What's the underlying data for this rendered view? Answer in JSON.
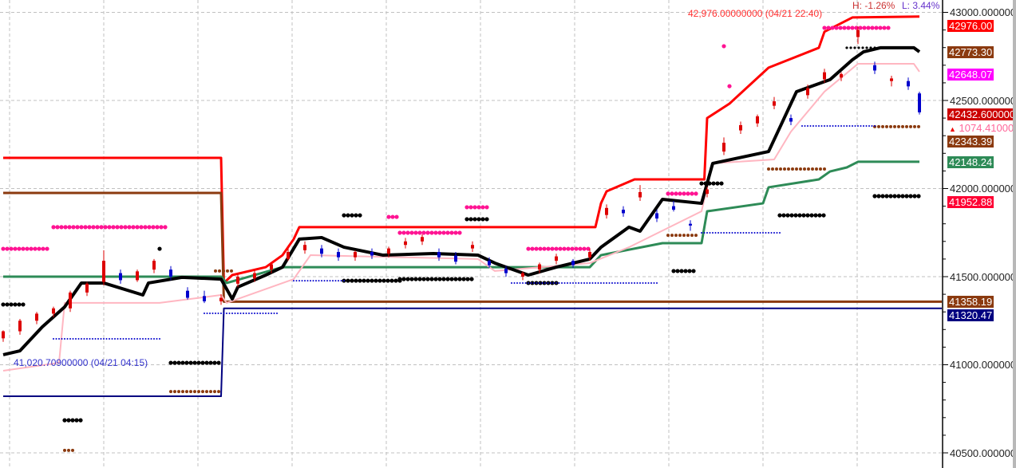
{
  "chart_data": {
    "type": "candlestick",
    "y_axis": {
      "range": [
        40450,
        43050
      ],
      "ticks": [
        43000,
        42500,
        42000,
        41500,
        41000,
        40500
      ],
      "tick_labels": [
        "43000.000000",
        "42500.000000",
        "42000.000000",
        "41500.000000",
        "41000.000000",
        "40500.000000"
      ],
      "grid": true
    },
    "x_axis": {
      "grid": true
    },
    "annotations": {
      "high_label": "42,976.00000000 (04/21 22:40)",
      "low_label": "41,020.70900000 (04/21 04:15)",
      "h_pct": "H: -1.26%",
      "l_pct": "L: 3.44%"
    },
    "price_tags": [
      {
        "text": "42976.00",
        "value": 42976.0,
        "color": "#ff0000"
      },
      {
        "text": "42773.30",
        "value": 42773.3,
        "color": "#8b3a0f"
      },
      {
        "text": "42648.07",
        "value": 42648.07,
        "color": "#ff00ff"
      },
      {
        "text": "42432.600000",
        "value": 42432.6,
        "color": "#cc0000"
      },
      {
        "text": "42343.39",
        "value": 42343.39,
        "color": "#8b3a0f"
      },
      {
        "text": "42148.24",
        "value": 42148.24,
        "color": "#2e8b57"
      },
      {
        "text": "41952.88",
        "value": 41952.88,
        "color": "#ff0033"
      },
      {
        "text": "41358.19",
        "value": 41358.19,
        "color": "#8b3a0f"
      },
      {
        "text": "41320.47",
        "value": 41320.47,
        "color": "#000080"
      }
    ],
    "change_tag": {
      "text": "1074.410000",
      "arrow": "▲",
      "color": "#ff6699"
    },
    "colors": {
      "up": "#dd0000",
      "down": "#0000cc"
    },
    "lines": [
      {
        "color": "#ff0000",
        "width": 3,
        "points": [
          [
            0,
            42174
          ],
          [
            39,
            42174
          ],
          [
            39.5,
            41464
          ],
          [
            41,
            41509
          ],
          [
            47,
            41554
          ],
          [
            50,
            41622
          ],
          [
            52,
            41713
          ],
          [
            53,
            41781
          ],
          [
            106,
            41781
          ],
          [
            107,
            41916
          ],
          [
            108,
            41984
          ],
          [
            113,
            42052
          ],
          [
            125.5,
            42052
          ],
          [
            126,
            42400
          ],
          [
            130,
            42482
          ],
          [
            137,
            42686
          ],
          [
            146,
            42799
          ],
          [
            147,
            42890
          ],
          [
            152,
            42971
          ],
          [
            164,
            42976
          ]
        ]
      },
      {
        "color": "#8b3a0f",
        "width": 3,
        "points": [
          [
            0,
            41975
          ],
          [
            39,
            41975
          ],
          [
            39.5,
            41358
          ],
          [
            168,
            41358
          ]
        ]
      },
      {
        "color": "#000080",
        "width": 2,
        "points": [
          [
            0,
            40821
          ],
          [
            39,
            40821
          ],
          [
            39.5,
            41320
          ],
          [
            168,
            41320
          ]
        ]
      },
      {
        "color": "#2e8b57",
        "width": 3,
        "points": [
          [
            0,
            41500
          ],
          [
            39,
            41500
          ],
          [
            40,
            41464
          ],
          [
            50,
            41554
          ],
          [
            105,
            41554
          ],
          [
            107,
            41622
          ],
          [
            118,
            41690
          ],
          [
            125,
            41690
          ],
          [
            126,
            41871
          ],
          [
            136,
            41916
          ],
          [
            137,
            42007
          ],
          [
            146,
            42052
          ],
          [
            148,
            42097
          ],
          [
            151,
            42120
          ],
          [
            153,
            42152
          ],
          [
            164,
            42152
          ]
        ]
      },
      {
        "color": "#ffb6c1",
        "width": 2,
        "points": [
          [
            0,
            40966
          ],
          [
            10,
            41011
          ],
          [
            11,
            41351
          ],
          [
            28,
            41351
          ],
          [
            39,
            41396
          ],
          [
            40,
            41351
          ],
          [
            52,
            41486
          ],
          [
            55,
            41622
          ],
          [
            85,
            41600
          ],
          [
            88,
            41532
          ],
          [
            105,
            41577
          ],
          [
            112,
            41667
          ],
          [
            125,
            41871
          ],
          [
            127,
            42143
          ],
          [
            138,
            42165
          ],
          [
            141,
            42323
          ],
          [
            147,
            42550
          ],
          [
            153,
            42708
          ],
          [
            163,
            42708
          ],
          [
            164,
            42663
          ]
        ]
      },
      {
        "color": "#000000",
        "width": 4,
        "points": [
          [
            0,
            41057
          ],
          [
            3,
            41079
          ],
          [
            7,
            41215
          ],
          [
            11,
            41328
          ],
          [
            14,
            41464
          ],
          [
            18,
            41464
          ],
          [
            25,
            41396
          ],
          [
            26,
            41464
          ],
          [
            32,
            41496
          ],
          [
            39,
            41486
          ],
          [
            41,
            41373
          ],
          [
            42,
            41441
          ],
          [
            47,
            41509
          ],
          [
            50,
            41554
          ],
          [
            53,
            41713
          ],
          [
            57,
            41722
          ],
          [
            61,
            41667
          ],
          [
            68,
            41622
          ],
          [
            77,
            41631
          ],
          [
            85,
            41622
          ],
          [
            88,
            41577
          ],
          [
            94,
            41509
          ],
          [
            99,
            41554
          ],
          [
            105,
            41600
          ],
          [
            107,
            41667
          ],
          [
            112,
            41781
          ],
          [
            114,
            41758
          ],
          [
            118,
            41939
          ],
          [
            125,
            41916
          ],
          [
            127,
            42143
          ],
          [
            137,
            42210
          ],
          [
            139,
            42346
          ],
          [
            142,
            42550
          ],
          [
            148,
            42618
          ],
          [
            152,
            42731
          ],
          [
            154,
            42776
          ],
          [
            157,
            42799
          ],
          [
            163,
            42799
          ],
          [
            164,
            42776
          ]
        ]
      }
    ],
    "dot_rows": [
      {
        "color": "#ff1493",
        "r": 2.6,
        "from": 0,
        "to": 8,
        "price": 41658
      },
      {
        "color": "#ff1493",
        "r": 2.6,
        "from": 9,
        "to": 29,
        "price": 41781
      },
      {
        "color": "#ff1493",
        "r": 2.6,
        "from": 69,
        "to": 71,
        "price": 41839
      },
      {
        "color": "#ff1493",
        "r": 2.6,
        "from": 83,
        "to": 87,
        "price": 41894
      },
      {
        "color": "#ff1493",
        "r": 2.6,
        "from": 71,
        "to": 82,
        "price": 41749
      },
      {
        "color": "#ff1493",
        "r": 2.6,
        "from": 94,
        "to": 105,
        "price": 41658
      },
      {
        "color": "#ff1493",
        "r": 2.6,
        "from": 119,
        "to": 124,
        "price": 41971
      },
      {
        "color": "#ff1493",
        "r": 2.6,
        "from": 147,
        "to": 159,
        "price": 42912
      },
      {
        "color": "#ff1493",
        "r": 2.6,
        "from": 129,
        "to": 129,
        "price": 42808
      },
      {
        "color": "#ff1493",
        "r": 2.6,
        "from": 130,
        "to": 130,
        "price": 42581
      },
      {
        "color": "#000000",
        "r": 2.6,
        "from": 61,
        "to": 64,
        "price": 41848
      },
      {
        "color": "#000000",
        "r": 2.6,
        "from": 83,
        "to": 87,
        "price": 41826
      },
      {
        "color": "#000000",
        "r": 2.6,
        "from": 61,
        "to": 71,
        "price": 41477
      },
      {
        "color": "#000000",
        "r": 2.6,
        "from": 94,
        "to": 99,
        "price": 41464
      },
      {
        "color": "#000000",
        "r": 2.6,
        "from": 30,
        "to": 39,
        "price": 41011
      },
      {
        "color": "#000000",
        "r": 2.6,
        "from": 71,
        "to": 84,
        "price": 41486
      },
      {
        "color": "#000000",
        "r": 2.6,
        "from": 139,
        "to": 147,
        "price": 41848
      },
      {
        "color": "#000000",
        "r": 2.6,
        "from": 156,
        "to": 164,
        "price": 41957
      },
      {
        "color": "#000000",
        "r": 2.6,
        "from": 125,
        "to": 129,
        "price": 42029
      },
      {
        "color": "#000000",
        "r": 2.6,
        "from": 120,
        "to": 124,
        "price": 41532
      },
      {
        "color": "#000000",
        "r": 2.6,
        "from": 0,
        "to": 4,
        "price": 41342
      },
      {
        "color": "#000000",
        "r": 2.6,
        "from": 11,
        "to": 14,
        "price": 40685
      },
      {
        "color": "#000000",
        "r": 2.6,
        "from": 28,
        "to": 28,
        "price": 41658
      },
      {
        "color": "#000000",
        "r": 1.6,
        "from": 151,
        "to": 157,
        "price": 42799
      },
      {
        "color": "#8b3a0f",
        "r": 2,
        "from": 30,
        "to": 39,
        "price": 40848
      },
      {
        "color": "#8b3a0f",
        "r": 2,
        "from": 11,
        "to": 13,
        "price": 40514
      },
      {
        "color": "#8b3a0f",
        "r": 2,
        "from": 156,
        "to": 164,
        "price": 42351
      },
      {
        "color": "#8b3a0f",
        "r": 2,
        "from": 119,
        "to": 124,
        "price": 41735
      },
      {
        "color": "#8b3a0f",
        "r": 2,
        "from": 137,
        "to": 147,
        "price": 42111
      },
      {
        "color": "#8b3a0f",
        "r": 2,
        "from": 38,
        "to": 41,
        "price": 41532
      },
      {
        "color": "#0000cc",
        "r": 1,
        "from": 9,
        "to": 28,
        "price": 41147
      },
      {
        "color": "#0000cc",
        "r": 1,
        "from": 36,
        "to": 49,
        "price": 41292
      },
      {
        "color": "#0000cc",
        "r": 1,
        "from": 91,
        "to": 117,
        "price": 41464
      },
      {
        "color": "#0000cc",
        "r": 1,
        "from": 125,
        "to": 139,
        "price": 41749
      },
      {
        "color": "#0000cc",
        "r": 1,
        "from": 143,
        "to": 156,
        "price": 42355
      },
      {
        "color": "#0000cc",
        "r": 1,
        "from": 52,
        "to": 61,
        "price": 41477
      }
    ],
    "candles": [
      [
        0,
        41150,
        41195,
        41130,
        41190
      ],
      [
        3,
        41190,
        41260,
        41170,
        41250
      ],
      [
        6,
        41250,
        41300,
        41230,
        41290
      ],
      [
        9,
        41290,
        41330,
        41270,
        41320
      ],
      [
        12,
        41320,
        41420,
        41300,
        41410
      ],
      [
        15,
        41410,
        41470,
        41390,
        41460
      ],
      [
        18,
        41470,
        41650,
        41450,
        41590
      ],
      [
        21,
        41520,
        41540,
        41460,
        41480
      ],
      [
        24,
        41480,
        41540,
        41470,
        41530
      ],
      [
        27,
        41540,
        41600,
        41520,
        41590
      ],
      [
        30,
        41540,
        41560,
        41480,
        41500
      ],
      [
        33,
        41420,
        41440,
        41370,
        41380
      ],
      [
        36,
        41390,
        41420,
        41350,
        41360
      ],
      [
        39,
        41360,
        41400,
        41340,
        41380
      ],
      [
        42,
        41460,
        41520,
        41440,
        41500
      ],
      [
        45,
        41490,
        41540,
        41470,
        41520
      ],
      [
        48,
        41540,
        41580,
        41520,
        41570
      ],
      [
        51,
        41600,
        41660,
        41590,
        41640
      ],
      [
        54,
        41650,
        41700,
        41630,
        41680
      ],
      [
        57,
        41660,
        41680,
        41610,
        41630
      ],
      [
        60,
        41640,
        41660,
        41590,
        41610
      ],
      [
        63,
        41610,
        41650,
        41590,
        41640
      ],
      [
        66,
        41640,
        41660,
        41600,
        41620
      ],
      [
        69,
        41630,
        41670,
        41610,
        41660
      ],
      [
        72,
        41680,
        41720,
        41660,
        41700
      ],
      [
        75,
        41700,
        41740,
        41680,
        41725
      ],
      [
        78,
        41640,
        41660,
        41590,
        41610
      ],
      [
        81,
        41620,
        41640,
        41570,
        41585
      ],
      [
        84,
        41660,
        41700,
        41640,
        41680
      ],
      [
        87,
        41590,
        41610,
        41550,
        41565
      ],
      [
        90,
        41545,
        41560,
        41500,
        41520
      ],
      [
        93,
        41500,
        41530,
        41480,
        41520
      ],
      [
        96,
        41540,
        41580,
        41520,
        41570
      ],
      [
        99,
        41590,
        41630,
        41570,
        41615
      ],
      [
        102,
        41590,
        41600,
        41550,
        41565
      ],
      [
        105,
        41610,
        41660,
        41590,
        41640
      ],
      [
        108,
        41850,
        41910,
        41830,
        41890
      ],
      [
        111,
        41880,
        41900,
        41840,
        41860
      ],
      [
        114,
        41950,
        42020,
        41930,
        41980
      ],
      [
        117,
        41860,
        41880,
        41810,
        41830
      ],
      [
        120,
        41900,
        41930,
        41870,
        41880
      ],
      [
        123,
        41800,
        41820,
        41760,
        41790
      ],
      [
        126,
        41970,
        42010,
        41950,
        41995
      ],
      [
        129,
        42210,
        42290,
        42190,
        42260
      ],
      [
        132,
        42330,
        42380,
        42310,
        42360
      ],
      [
        135,
        42370,
        42420,
        42350,
        42410
      ],
      [
        138,
        42470,
        42520,
        42450,
        42495
      ],
      [
        141,
        42400,
        42420,
        42360,
        42380
      ],
      [
        144,
        42530,
        42590,
        42510,
        42570
      ],
      [
        147,
        42620,
        42680,
        42600,
        42660
      ],
      [
        150,
        42630,
        42660,
        42610,
        42650
      ],
      [
        153,
        42860,
        42920,
        42820,
        42900
      ],
      [
        156,
        42700,
        42720,
        42650,
        42670
      ],
      [
        159,
        42610,
        42640,
        42580,
        42625
      ],
      [
        162,
        42610,
        42630,
        42560,
        42580
      ],
      [
        164,
        42540,
        42550,
        42420,
        42432.6
      ]
    ]
  }
}
